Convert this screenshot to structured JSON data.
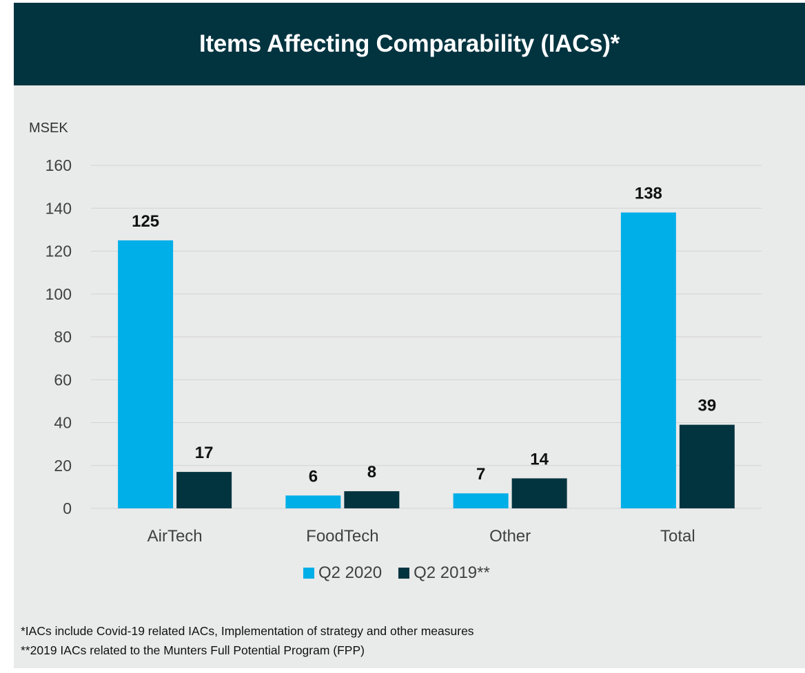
{
  "title": "Items Affecting Comparability (IACs)*",
  "chart_data": {
    "type": "bar",
    "title": "Items Affecting Comparability (IACs)*",
    "ylabel": "MSEK",
    "xlabel": "",
    "ylim": [
      0,
      160
    ],
    "yticks": [
      0,
      20,
      40,
      60,
      80,
      100,
      120,
      140,
      160
    ],
    "grid": true,
    "legend_position": "bottom",
    "categories": [
      "AirTech",
      "FoodTech",
      "Other",
      "Total"
    ],
    "series": [
      {
        "name": "Q2 2020",
        "color": "#00aee8",
        "values": [
          125,
          6,
          7,
          138
        ]
      },
      {
        "name": "Q2 2019**",
        "color": "#023440",
        "values": [
          17,
          8,
          14,
          39
        ]
      }
    ],
    "data_labels": true
  },
  "legend": [
    {
      "label": "Q2 2020",
      "color": "#00aee8"
    },
    {
      "label": "Q2 2019**",
      "color": "#023440"
    }
  ],
  "footnotes": [
    "*IACs include Covid-19 related IACs, Implementation of strategy and other measures",
    "**2019 IACs related to the Munters Full Potential Program (FPP)"
  ],
  "colors": {
    "header_bg": "#023440",
    "panel_bg": "#e9eaea",
    "accent": "#00aee8"
  }
}
